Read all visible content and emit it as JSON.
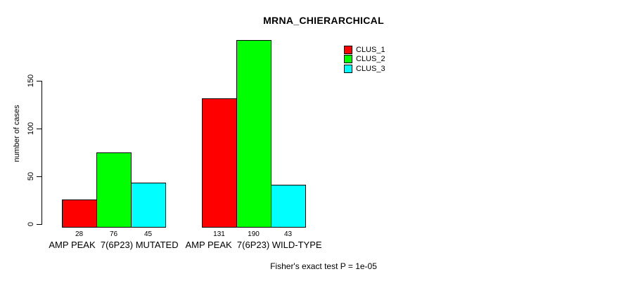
{
  "chart_data": {
    "type": "bar",
    "title": "MRNA_CHIERARCHICAL",
    "ylabel": "number of cases",
    "xlabel": "",
    "categories": [
      "AMP PEAK  7(6P23) MUTATED",
      "AMP PEAK  7(6P23) WILD-TYPE"
    ],
    "series": [
      {
        "name": "CLUS_1",
        "color": "#ff0000",
        "values": [
          28,
          131
        ]
      },
      {
        "name": "CLUS_2",
        "color": "#00ff00",
        "values": [
          76,
          190
        ]
      },
      {
        "name": "CLUS_3",
        "color": "#00ffff",
        "values": [
          45,
          43
        ]
      }
    ],
    "yticks": [
      0,
      50,
      100,
      150
    ],
    "ylim": [
      0,
      190
    ],
    "grid": false,
    "bar_value_labels_shown": true,
    "legend_position": "top-right",
    "annotation": "Fisher's exact test P = 1e-05"
  }
}
